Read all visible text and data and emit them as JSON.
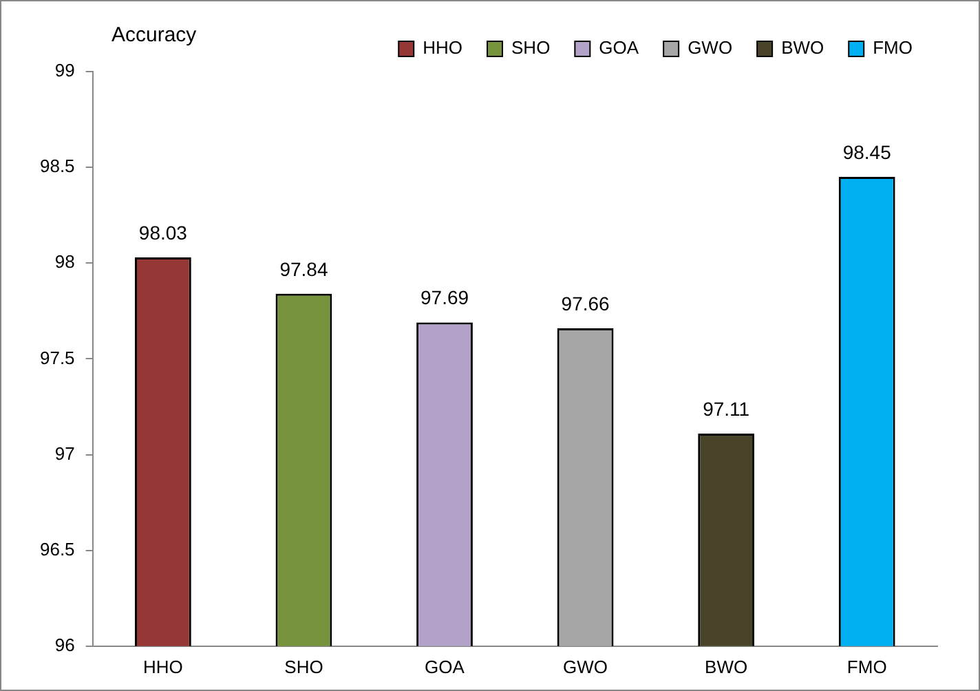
{
  "chart_data": {
    "type": "bar",
    "title": "Accuracy",
    "categories": [
      "HHO",
      "SHO",
      "GOA",
      "GWO",
      "BWO",
      "FMO"
    ],
    "series": [
      {
        "name": "HHO",
        "color": "#953735",
        "values": [
          98.03,
          null,
          null,
          null,
          null,
          null
        ]
      },
      {
        "name": "SHO",
        "color": "#77933c",
        "values": [
          null,
          97.84,
          null,
          null,
          null,
          null
        ]
      },
      {
        "name": "GOA",
        "color": "#b3a2c7",
        "values": [
          null,
          null,
          97.69,
          null,
          null,
          null
        ]
      },
      {
        "name": "GWO",
        "color": "#a6a6a6",
        "values": [
          null,
          null,
          null,
          97.66,
          null,
          null
        ]
      },
      {
        "name": "BWO",
        "color": "#494429",
        "values": [
          null,
          null,
          null,
          null,
          97.11,
          null
        ]
      },
      {
        "name": "FMO",
        "color": "#00b0f0",
        "values": [
          null,
          null,
          null,
          null,
          null,
          98.45
        ]
      }
    ],
    "ylim": [
      96,
      99
    ],
    "yticks": [
      96,
      96.5,
      97,
      97.5,
      98,
      98.5,
      99
    ],
    "grid": false,
    "legend": "top right",
    "data_labels": true
  }
}
